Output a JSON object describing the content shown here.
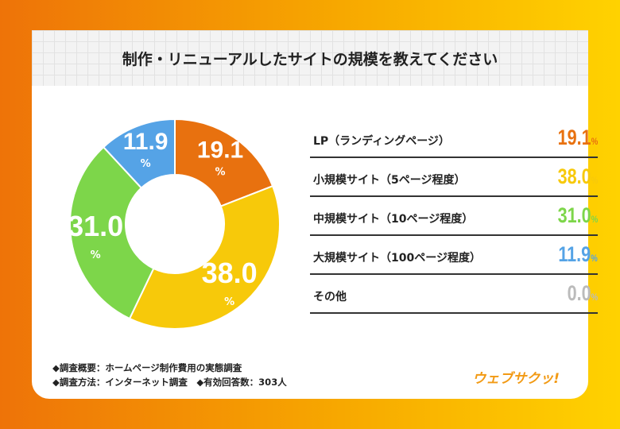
{
  "title": "制作・リニューアルしたサイトの規模を教えてください",
  "chart_data": {
    "type": "pie",
    "donut": true,
    "start": "top",
    "direction": "clockwise",
    "categories": [
      "LP（ランディングページ）",
      "小規模サイト（5ページ程度）",
      "中規模サイト（10ページ程度）",
      "大規模サイト（100ページ程度）",
      "その他"
    ],
    "values": [
      19.1,
      38.0,
      31.0,
      11.9,
      0.0
    ],
    "value_labels": [
      "19.1",
      "38.0",
      "31.0",
      "11.9",
      "0.0"
    ],
    "unit": "%",
    "colors": [
      "#e8710f",
      "#f7c90a",
      "#7dd64a",
      "#55a3e6",
      "#bbbbbb"
    ]
  },
  "notes": [
    "◆調査概要：ホームページ制作費用の実態調査",
    "◆調査方法：インターネット調査　◆有効回答数：303人"
  ],
  "logo": "ウェブサクッ!"
}
